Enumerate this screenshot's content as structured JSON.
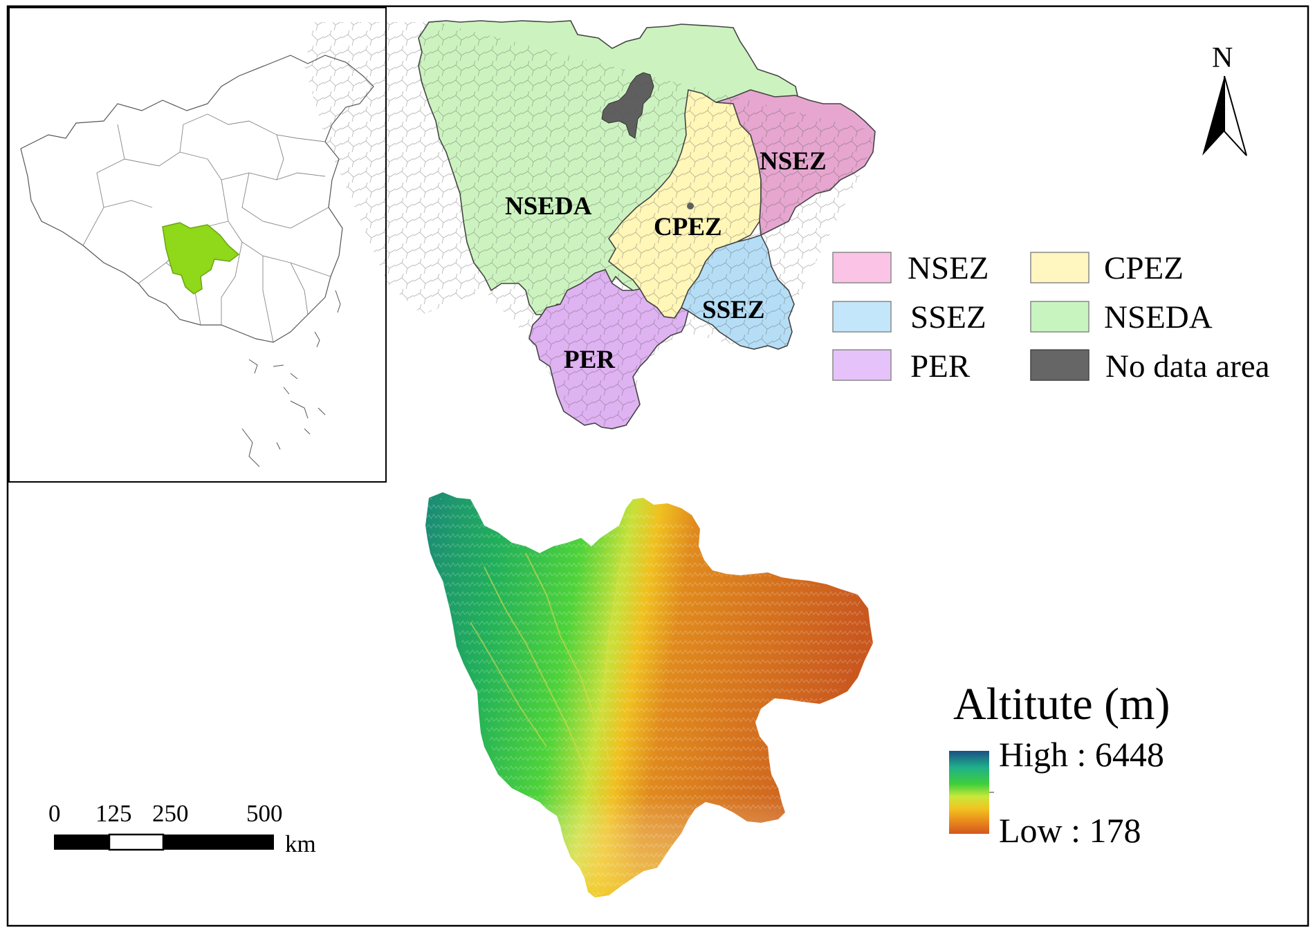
{
  "north_arrow": {
    "label": "N"
  },
  "inset": {
    "highlight_color": "#8fd81a"
  },
  "zones": [
    {
      "id": "NSEZ",
      "label": "NSEZ",
      "color": "#e6a6cf"
    },
    {
      "id": "CPEZ",
      "label": "CPEZ",
      "color": "#fff6b8"
    },
    {
      "id": "SSEZ",
      "label": "SSEZ",
      "color": "#b5def6"
    },
    {
      "id": "NSEDA",
      "label": "NSEDA",
      "color": "#ccf3bf"
    },
    {
      "id": "PER",
      "label": "PER",
      "color": "#dfb2f2"
    },
    {
      "id": "NODATA",
      "label": "No data area",
      "color": "#5f5f5f"
    }
  ],
  "legend": [
    {
      "label": "NSEZ",
      "color": "#fbc4e6"
    },
    {
      "label": "CPEZ",
      "color": "#fff6c0"
    },
    {
      "label": "SSEZ",
      "color": "#c3e6fb"
    },
    {
      "label": "NSEDA",
      "color": "#c8f4c0"
    },
    {
      "label": "PER",
      "color": "#e5c3fa"
    },
    {
      "label": "No data area",
      "color": "#666666"
    }
  ],
  "altitude": {
    "title": "Altitute (m)",
    "high_label": "High : 6448",
    "low_label": "Low : 178",
    "high_value": 6448,
    "low_value": 178,
    "ramp_colors": [
      "#1a4f86",
      "#1fb08a",
      "#3fcf3a",
      "#c9e83a",
      "#f2c21f",
      "#e88a1c",
      "#d4561f"
    ]
  },
  "scale_bar": {
    "ticks": [
      "0",
      "125",
      "250",
      "500"
    ],
    "unit": "km"
  }
}
